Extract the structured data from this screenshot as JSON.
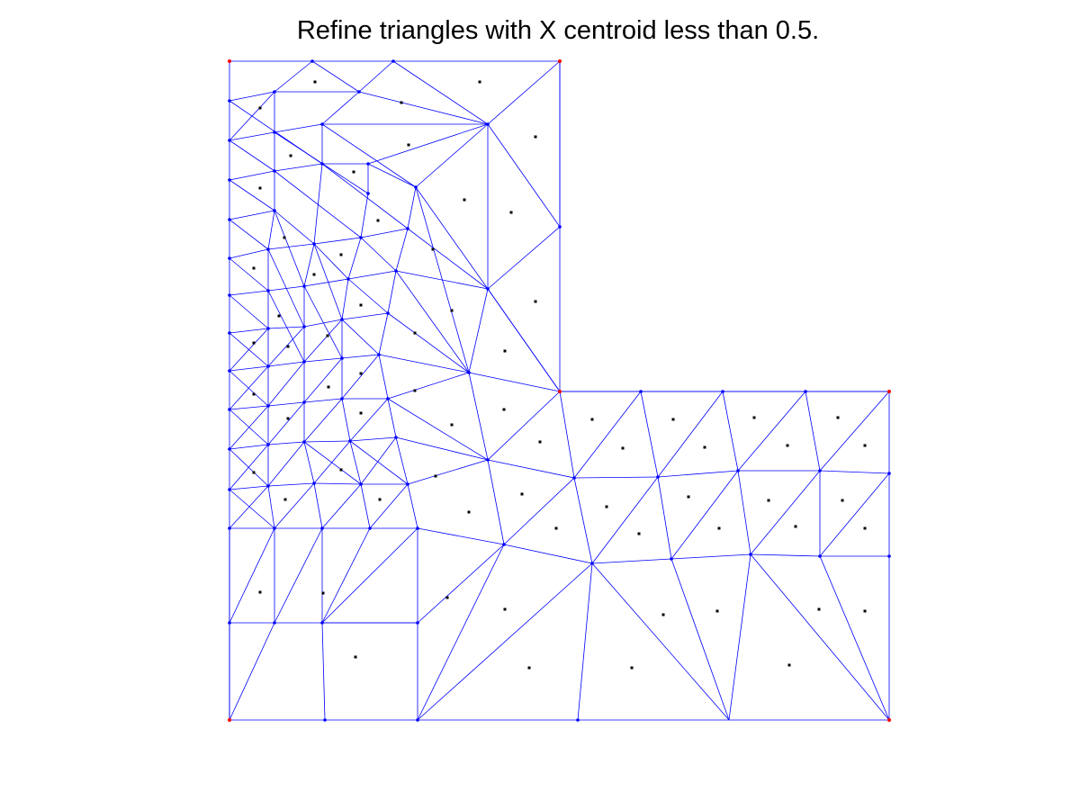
{
  "title": "Refine triangles with X centroid less than 0.5.",
  "colors": {
    "edge": "#0000ff",
    "vertex": "#0000ff",
    "corner_vertex": "#ff0000",
    "centroid": "#000000",
    "background": "#ffffff"
  }
}
